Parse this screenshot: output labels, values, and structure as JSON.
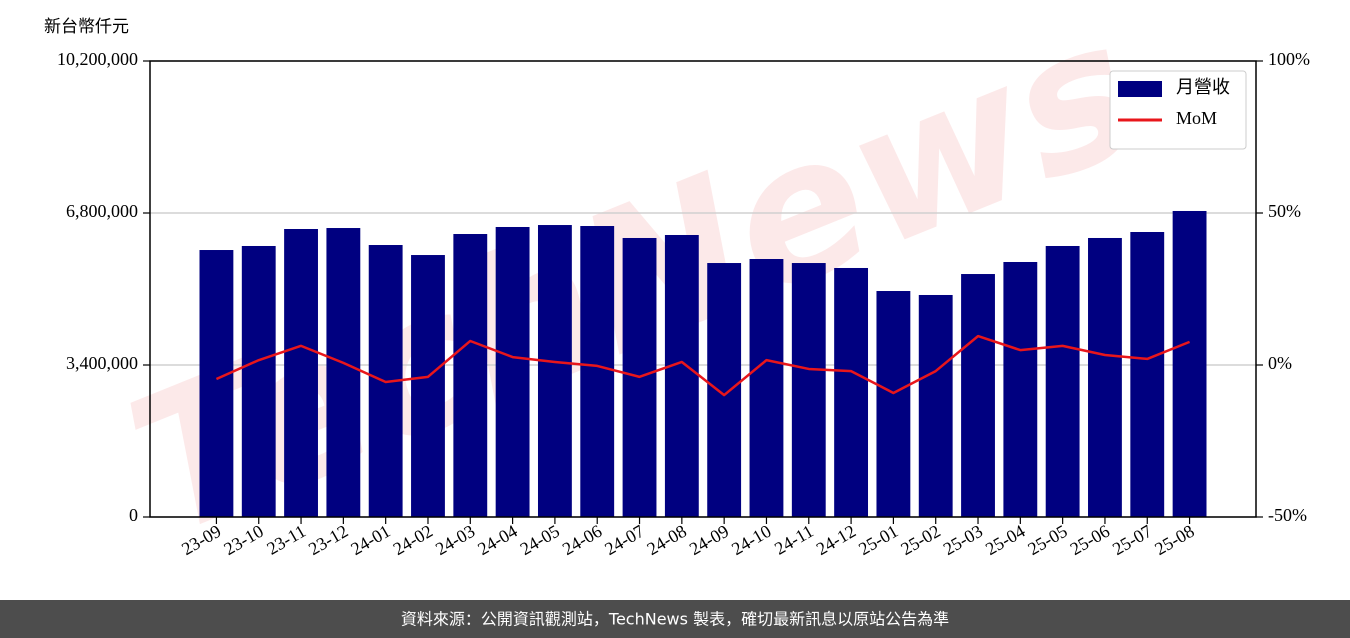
{
  "chart_data": {
    "type": "bar",
    "y_label": "新台幣仟元",
    "watermark": "TechNews",
    "footer": "資料來源：公開資訊觀測站，TechNews 製表，確切最新訊息以原站公告為準",
    "categories": [
      "23-09",
      "23-10",
      "23-11",
      "23-12",
      "24-01",
      "24-02",
      "24-03",
      "24-04",
      "24-05",
      "24-06",
      "24-07",
      "24-08",
      "24-09",
      "24-10",
      "24-11",
      "24-12",
      "25-01",
      "25-02",
      "25-03",
      "25-04",
      "25-05",
      "25-06",
      "25-07",
      "25-08"
    ],
    "series": [
      {
        "name": "月營收",
        "type": "bar",
        "color": "#000080",
        "values": [
          5972000,
          6062000,
          6442000,
          6464000,
          6084000,
          5860000,
          6330000,
          6487000,
          6531000,
          6509000,
          6241000,
          6308000,
          5681000,
          5771000,
          5681000,
          5570000,
          5055000,
          4966000,
          5435000,
          5704000,
          6062000,
          6241000,
          6375000,
          6845000
        ]
      },
      {
        "name": "MoM",
        "type": "line",
        "axis": "y2",
        "color": "#e8161b",
        "values": [
          -4.6,
          1.6,
          6.3,
          0.7,
          -5.6,
          -3.9,
          7.9,
          2.6,
          1.0,
          -0.3,
          -3.9,
          1.0,
          -9.9,
          1.6,
          -1.3,
          -2.0,
          -9.2,
          -2.0,
          9.5,
          4.9,
          6.3,
          3.3,
          2.0,
          7.6
        ]
      }
    ],
    "ylim": [
      0,
      10200000
    ],
    "yticks": [
      0,
      {
        "value": 3400000,
        "label": "3,400,000"
      },
      {
        "value": 6800000,
        "label": "6,800,000"
      },
      {
        "value": 10200000,
        "label": "10,200,000"
      }
    ],
    "y2lim": [
      -50,
      100
    ],
    "y2ticks": [
      {
        "value": -50,
        "label": "-50%"
      },
      {
        "value": 0,
        "label": "0%"
      },
      {
        "value": 50,
        "label": "50%"
      },
      {
        "value": 100,
        "label": "100%"
      }
    ],
    "grid": true,
    "legend": "upper right"
  }
}
